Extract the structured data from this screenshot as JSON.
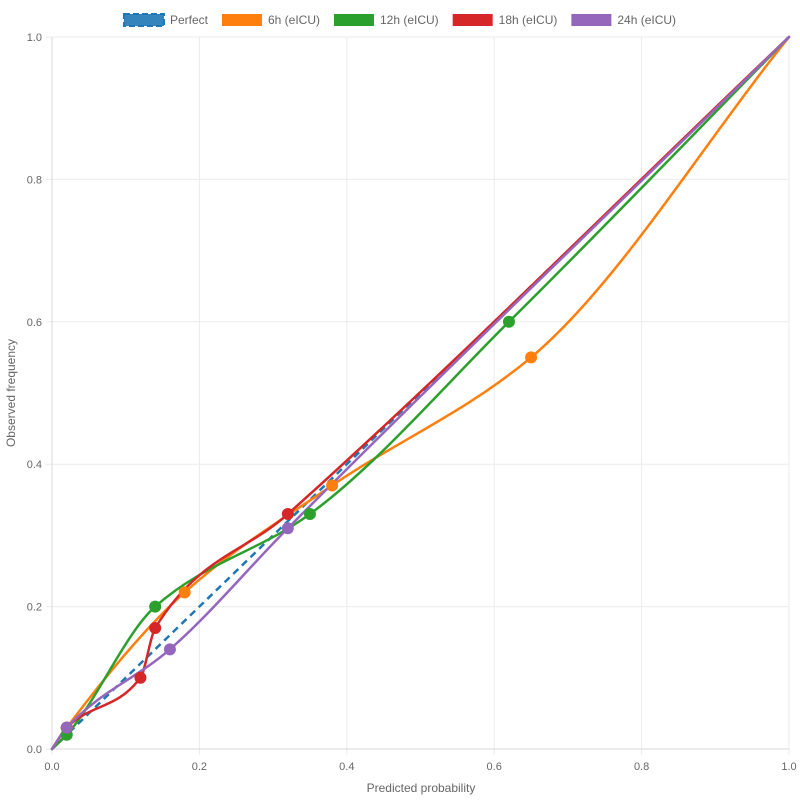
{
  "chart_data": {
    "type": "line",
    "title": "",
    "xlabel": "Predicted probability",
    "ylabel": "Observed frequency",
    "xlim": [
      0,
      1
    ],
    "ylim": [
      0,
      1
    ],
    "x_ticks": [
      "0.0",
      "0.2",
      "0.4",
      "0.6",
      "0.8",
      "1.0"
    ],
    "y_ticks": [
      "0.0",
      "0.2",
      "0.4",
      "0.6",
      "0.8",
      "1.0"
    ],
    "grid": true,
    "legend_position": "top",
    "series": [
      {
        "name": "Perfect",
        "color": "#1f77b4",
        "dashed": true,
        "smooth": false,
        "show_markers": false,
        "points": [
          [
            0,
            0
          ],
          [
            1,
            1
          ]
        ]
      },
      {
        "name": "6h (eICU)",
        "color": "#ff7f0e",
        "dashed": false,
        "smooth": true,
        "show_markers": true,
        "points": [
          [
            0,
            0
          ],
          [
            0.02,
            0.03
          ],
          [
            0.18,
            0.22
          ],
          [
            0.38,
            0.37
          ],
          [
            0.65,
            0.55
          ],
          [
            1,
            1
          ]
        ]
      },
      {
        "name": "12h (eICU)",
        "color": "#2ca02c",
        "dashed": false,
        "smooth": true,
        "show_markers": true,
        "points": [
          [
            0,
            0
          ],
          [
            0.02,
            0.02
          ],
          [
            0.14,
            0.2
          ],
          [
            0.35,
            0.33
          ],
          [
            0.62,
            0.6
          ],
          [
            1,
            1
          ]
        ]
      },
      {
        "name": "18h (eICU)",
        "color": "#d62728",
        "dashed": false,
        "smooth": true,
        "show_markers": true,
        "points": [
          [
            0,
            0
          ],
          [
            0.02,
            0.03
          ],
          [
            0.12,
            0.1
          ],
          [
            0.14,
            0.17
          ],
          [
            0.32,
            0.33
          ],
          [
            1,
            1
          ]
        ]
      },
      {
        "name": "24h (eICU)",
        "color": "#9467bd",
        "dashed": false,
        "smooth": true,
        "show_markers": true,
        "points": [
          [
            0,
            0
          ],
          [
            0.02,
            0.03
          ],
          [
            0.16,
            0.14
          ],
          [
            0.32,
            0.31
          ],
          [
            1,
            1
          ]
        ]
      }
    ]
  }
}
